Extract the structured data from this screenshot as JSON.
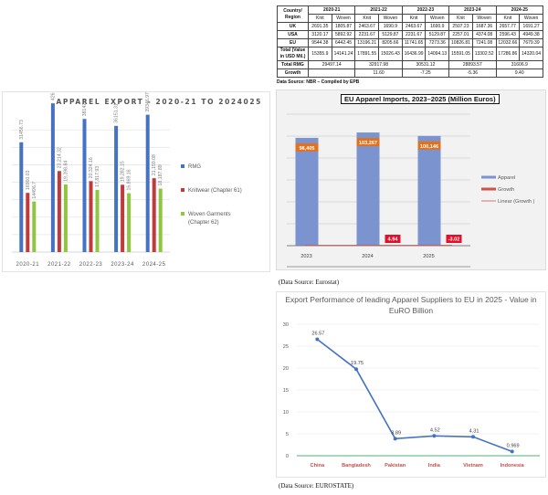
{
  "table": {
    "header_region": "Country/ Region",
    "years": [
      "2020-21",
      "2021-22",
      "2022-23",
      "2023-24",
      "2024-25"
    ],
    "sub_headers": [
      "Knit",
      "Woven"
    ],
    "rows": [
      {
        "label": "UK",
        "values": [
          "2691.35",
          "1805.87",
          "2463.67",
          "1690.9",
          "2463.67",
          "1690.9",
          "2507.23",
          "1687.36",
          "2657.77",
          "1691.27"
        ]
      },
      {
        "label": "USA",
        "values": [
          "3120.17",
          "5892.92",
          "2231.67",
          "5129.87",
          "2231.67",
          "5129.87",
          "2257.01",
          "4374.08",
          "2596.43",
          "4949.38"
        ]
      },
      {
        "label": "EU",
        "values": [
          "9544.38",
          "6442.45",
          "13196.21",
          "8205.66",
          "11741.65",
          "7273.36",
          "10826.81",
          "7241.08",
          "12032.66",
          "7679.39"
        ]
      },
      {
        "label": "Total (Value in USD Mil.)",
        "values": [
          "15355.9",
          "14141.24",
          "17891.55",
          "15026.43",
          "16436.99",
          "14094.13",
          "15591.05",
          "13302.52",
          "17286.86",
          "14320.04"
        ]
      }
    ],
    "total_rmg_label": "Total RMG",
    "total_rmg": [
      "29497.14",
      "32917.98",
      "30531.12",
      "28893.57",
      "31606.9"
    ],
    "growth_label": "Growth",
    "growth": [
      "",
      "11.60",
      "-7.25",
      "-5.36",
      "9.40"
    ],
    "source": "Data Source: NBR – Compiled by EPB"
  },
  "eu_source": "(Data Source: Eurostat)",
  "line_source": "(Data Source: EUROSTATE)",
  "chart_data": [
    {
      "type": "bar",
      "title": "APPAREL EXPORT - 2020-21 TO 2024025",
      "categories": [
        "2020-21",
        "2021-22",
        "2022-23",
        "2023-24",
        "2024-25"
      ],
      "series": [
        {
          "name": "RMG",
          "color": "#4472c4",
          "values": [
            31456.73,
            42613.15,
            38142.1,
            36151.31,
            39346.97
          ],
          "labels": [
            "31456.73",
            "42613.15",
            "38142.1",
            "36151.31",
            "39346.97"
          ]
        },
        {
          "name": "Knitwear (Chapter 61)",
          "color": "#c0393b",
          "values": [
            16960.03,
            23214.32,
            20324.16,
            19282.15,
            21159.08
          ],
          "labels": [
            "16960.03",
            "23,214.32",
            "20,324.16",
            "19,282.15",
            "21,159.08"
          ]
        },
        {
          "name": "Woven Garments (Chapter 62)",
          "color": "#8dc63f",
          "values": [
            14496.7,
            19398.84,
            17817.93,
            16869.16,
            18187.89
          ],
          "labels": [
            "14496.7",
            "19,398.84",
            "17,817.93",
            "16,869.16",
            "18,187.89"
          ]
        }
      ],
      "ylim": [
        0,
        45000
      ],
      "grid": true,
      "legend": "right"
    },
    {
      "type": "bar",
      "title": "EU Apparel Imports, 2023–2025 (Million Euros)",
      "categories": [
        "2023",
        "2024",
        "2025"
      ],
      "series": [
        {
          "name": "Apparel",
          "color": "#7b93cf",
          "values": [
            98405,
            103267,
            100146
          ],
          "labels": [
            "98,405",
            "103,267",
            "100,146"
          ]
        },
        {
          "name": "Growth",
          "color": "#d0534a",
          "values": [
            null,
            4.94,
            -3.02
          ],
          "labels": [
            "",
            "4.94",
            "-3.02"
          ]
        },
        {
          "name": "Linear (Growth )",
          "color": "#d0534a",
          "type": "trendline"
        }
      ],
      "ylim": [
        0,
        120000
      ],
      "grid": true,
      "legend": "right"
    },
    {
      "type": "line",
      "title": "Export Performance of leading Apparel Suppliers to EU in 2025 - Value in EuRO Billion",
      "categories": [
        "China",
        "Bangladesh",
        "Pakistan",
        "India",
        "Vietnam",
        "Indonesia"
      ],
      "series": [
        {
          "name": "Value (EUR Billion)",
          "color": "#4472c4",
          "values": [
            26.57,
            19.75,
            3.89,
            4.52,
            4.31,
            0.969
          ],
          "labels": [
            "26.57",
            "19.75",
            "3.89",
            "4.52",
            "4.31",
            "0.969"
          ]
        }
      ],
      "yticks": [
        "0",
        "5",
        "10",
        "15",
        "20",
        "25",
        "30"
      ],
      "ylim": [
        0,
        30
      ],
      "grid": true,
      "legend": "none"
    }
  ]
}
